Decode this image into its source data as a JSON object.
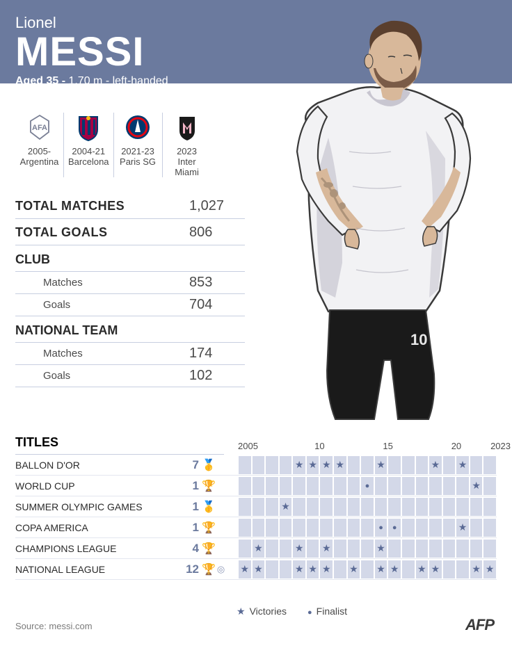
{
  "header": {
    "first_name": "Lionel",
    "last_name": "MESSI",
    "bio_bold": "Aged 35 -",
    "bio_rest": " 1.70 m - left-handed"
  },
  "clubs": [
    {
      "years": "2005-",
      "name": "Argentina",
      "logo": "afa"
    },
    {
      "years": "2004-21",
      "name": "Barcelona",
      "logo": "fcb"
    },
    {
      "years": "2021-23",
      "name": "Paris SG",
      "logo": "psg"
    },
    {
      "years": "2023",
      "name": "Inter\nMiami",
      "logo": "imcf"
    }
  ],
  "stats": {
    "total_matches": {
      "label": "TOTAL MATCHES",
      "value": "1,027"
    },
    "total_goals": {
      "label": "TOTAL GOALS",
      "value": "806"
    },
    "club_header": "CLUB",
    "club_matches": {
      "label": "Matches",
      "value": "853"
    },
    "club_goals": {
      "label": "Goals",
      "value": "704"
    },
    "national_header": "NATIONAL TEAM",
    "national_matches": {
      "label": "Matches",
      "value": "174"
    },
    "national_goals": {
      "label": "Goals",
      "value": "102"
    }
  },
  "titles": {
    "header": "TITLES",
    "year_labels": [
      "2005",
      "",
      "",
      "",
      "",
      "10",
      "",
      "",
      "",
      "",
      "15",
      "",
      "",
      "",
      "",
      "20",
      "",
      "",
      "2023"
    ],
    "rows": [
      {
        "name": "BALLON D'OR",
        "count": "7",
        "trophy": "🥇",
        "cells": [
          "",
          "",
          "",
          "",
          "v",
          "v",
          "v",
          "v",
          "",
          "",
          "v",
          "",
          "",
          "",
          "v",
          "",
          "v",
          "",
          ""
        ]
      },
      {
        "name": "WORLD CUP",
        "count": "1",
        "trophy": "🏆",
        "cells": [
          "",
          "",
          "",
          "",
          "",
          "",
          "",
          "",
          "",
          "f",
          "",
          "",
          "",
          "",
          "",
          "",
          "",
          "v",
          ""
        ]
      },
      {
        "name": "SUMMER OLYMPIC GAMES",
        "count": "1",
        "trophy": "🥇",
        "cells": [
          "",
          "",
          "",
          "v",
          "",
          "",
          "",
          "",
          "",
          "",
          "",
          "",
          "",
          "",
          "",
          "",
          "",
          "",
          ""
        ]
      },
      {
        "name": "COPA AMERICA",
        "count": "1",
        "trophy": "🏆",
        "cells": [
          "",
          "",
          "",
          "",
          "",
          "",
          "",
          "",
          "",
          "",
          "f",
          "f",
          "",
          "",
          "",
          "",
          "v",
          "",
          ""
        ]
      },
      {
        "name": "CHAMPIONS LEAGUE",
        "count": "4",
        "trophy": "🏆",
        "cells": [
          "",
          "v",
          "",
          "",
          "v",
          "",
          "v",
          "",
          "",
          "",
          "v",
          "",
          "",
          "",
          "",
          "",
          "",
          "",
          ""
        ]
      },
      {
        "name": "NATIONAL LEAGUE",
        "count": "12",
        "trophy": "🏆",
        "cells": [
          "v",
          "v",
          "",
          "",
          "v",
          "v",
          "v",
          "",
          "v",
          "",
          "v",
          "v",
          "",
          "v",
          "v",
          "",
          "",
          "v",
          "v"
        ]
      }
    ]
  },
  "legend": {
    "victories": "Victories",
    "finalist": "Finalist"
  },
  "source": "Source: messi.com",
  "credit": "AFP",
  "colors": {
    "header_bg": "#6b7a9e",
    "cell_bg": "#d3d8e8",
    "mark": "#5a6a95",
    "text_dark": "#2a2a2a",
    "text_mid": "#4a4a4a",
    "border": "#c7cee0"
  },
  "illustration": {
    "skin": "#d8b89a",
    "hair": "#5a3f2e",
    "beard": "#6a4a38",
    "shirt_light": "#f2f2f4",
    "shirt_shadow": "#c8c6d0",
    "shorts": "#1a1a1a",
    "tattoo": "#8a7560",
    "outline": "#3a3a3a"
  }
}
